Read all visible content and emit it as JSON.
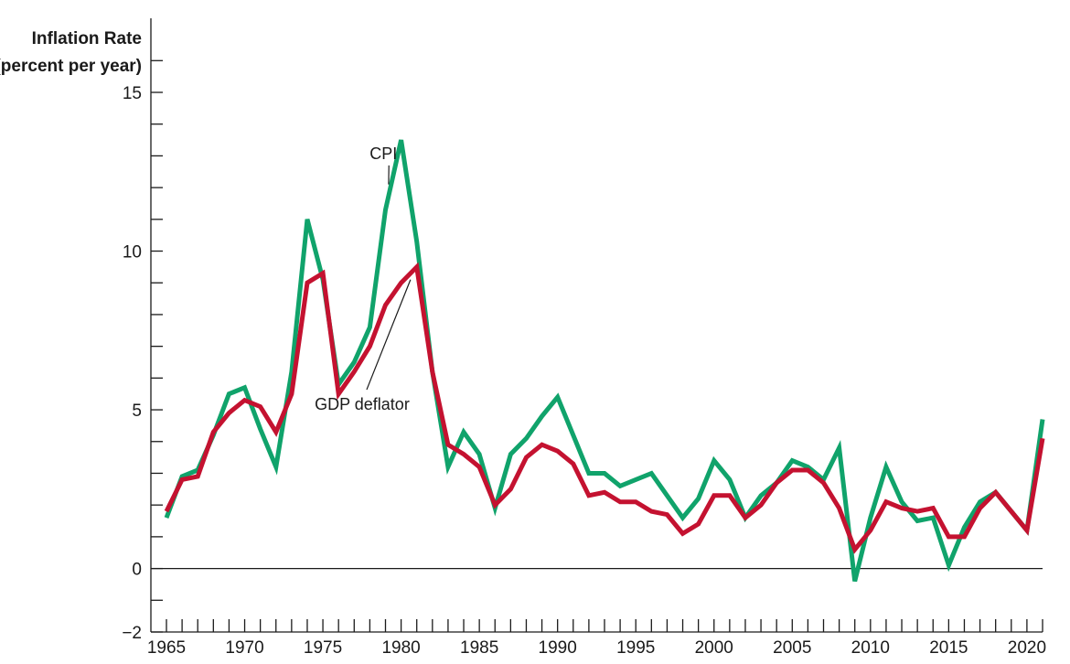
{
  "chart_data": {
    "type": "line",
    "ylabel_line1": "Inflation Rate",
    "ylabel_line2": "(percent per year)",
    "xlabel": "",
    "ylim": [
      -2,
      15
    ],
    "xlim": [
      1965,
      2021
    ],
    "y_ticks": [
      -2,
      0,
      5,
      10,
      15
    ],
    "y_tick_labels": [
      "−2",
      "0",
      "5",
      "10",
      "15"
    ],
    "y_minor_step": 1,
    "x_ticks": [
      1965,
      1970,
      1975,
      1980,
      1985,
      1990,
      1995,
      2000,
      2005,
      2010,
      2015,
      2020
    ],
    "x_tick_labels": [
      "1965",
      "1970",
      "1975",
      "1980",
      "1985",
      "1990",
      "1995",
      "2000",
      "2005",
      "2010",
      "2015",
      "2020"
    ],
    "x_minor_step": 1,
    "zero_line": true,
    "grid": false,
    "legend": "none (series labeled by annotations)",
    "x": [
      1965,
      1966,
      1967,
      1968,
      1969,
      1970,
      1971,
      1972,
      1973,
      1974,
      1975,
      1976,
      1977,
      1978,
      1979,
      1980,
      1981,
      1982,
      1983,
      1984,
      1985,
      1986,
      1987,
      1988,
      1989,
      1990,
      1991,
      1992,
      1993,
      1994,
      1995,
      1996,
      1997,
      1998,
      1999,
      2000,
      2001,
      2002,
      2003,
      2004,
      2005,
      2006,
      2007,
      2008,
      2009,
      2010,
      2011,
      2012,
      2013,
      2014,
      2015,
      2016,
      2017,
      2018,
      2019,
      2020,
      2021
    ],
    "series": [
      {
        "name": "CPI",
        "color": "#10a36b",
        "values": [
          1.6,
          2.9,
          3.1,
          4.2,
          5.5,
          5.7,
          4.4,
          3.2,
          6.2,
          11.0,
          9.1,
          5.8,
          6.5,
          7.6,
          11.3,
          13.5,
          10.3,
          6.2,
          3.2,
          4.3,
          3.6,
          1.9,
          3.6,
          4.1,
          4.8,
          5.4,
          4.2,
          3.0,
          3.0,
          2.6,
          2.8,
          3.0,
          2.3,
          1.6,
          2.2,
          3.4,
          2.8,
          1.6,
          2.3,
          2.7,
          3.4,
          3.2,
          2.8,
          3.8,
          -0.4,
          1.6,
          3.2,
          2.1,
          1.5,
          1.6,
          0.1,
          1.3,
          2.1,
          2.4,
          1.8,
          1.2,
          4.7
        ]
      },
      {
        "name": "GDP deflator",
        "color": "#c41230",
        "values": [
          1.8,
          2.8,
          2.9,
          4.3,
          4.9,
          5.3,
          5.1,
          4.3,
          5.5,
          9.0,
          9.3,
          5.5,
          6.2,
          7.0,
          8.3,
          9.0,
          9.5,
          6.2,
          3.9,
          3.6,
          3.2,
          2.0,
          2.5,
          3.5,
          3.9,
          3.7,
          3.3,
          2.3,
          2.4,
          2.1,
          2.1,
          1.8,
          1.7,
          1.1,
          1.4,
          2.3,
          2.3,
          1.6,
          2.0,
          2.7,
          3.1,
          3.1,
          2.7,
          1.9,
          0.6,
          1.2,
          2.1,
          1.9,
          1.8,
          1.9,
          1.0,
          1.0,
          1.9,
          2.4,
          1.8,
          1.2,
          4.1
        ]
      }
    ],
    "annotations": [
      {
        "text": "CPI",
        "series": "CPI",
        "x": 1979.2,
        "y": 12.1,
        "label_x": 1978.4,
        "label_y": 12.9
      },
      {
        "text": "GDP deflator",
        "series": "GDP deflator",
        "x": 1980.6,
        "y": 9.1,
        "label_x": 1977.8,
        "label_y": 5.0
      }
    ]
  }
}
